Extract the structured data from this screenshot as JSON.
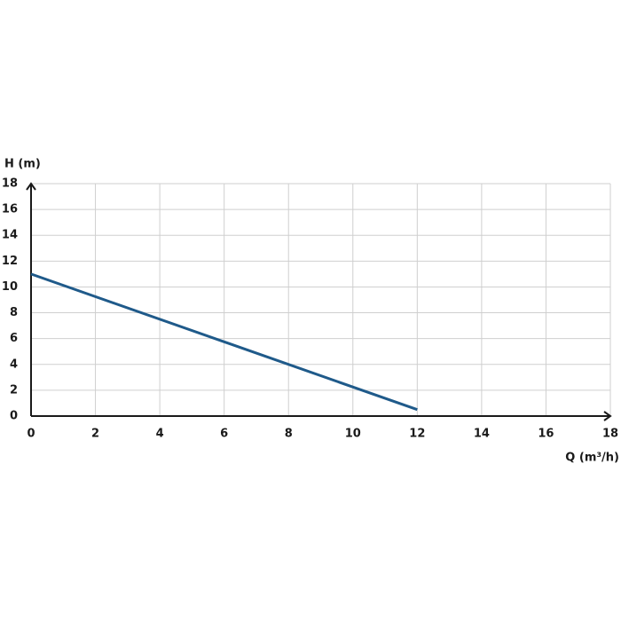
{
  "chart_data": {
    "type": "line",
    "x_label": "Q (m³/h)",
    "y_label": "H (m)",
    "x": [
      0,
      12
    ],
    "values": [
      11,
      0.5
    ],
    "color": "#1f5a8a",
    "xlim": [
      0,
      18
    ],
    "xticks": [
      0,
      2,
      4,
      6,
      8,
      10,
      12,
      14,
      16,
      18
    ],
    "ylim": [
      0,
      18
    ],
    "yticks": [
      0,
      2,
      4,
      6,
      8,
      10,
      12,
      14,
      16,
      18
    ],
    "grid": true
  }
}
